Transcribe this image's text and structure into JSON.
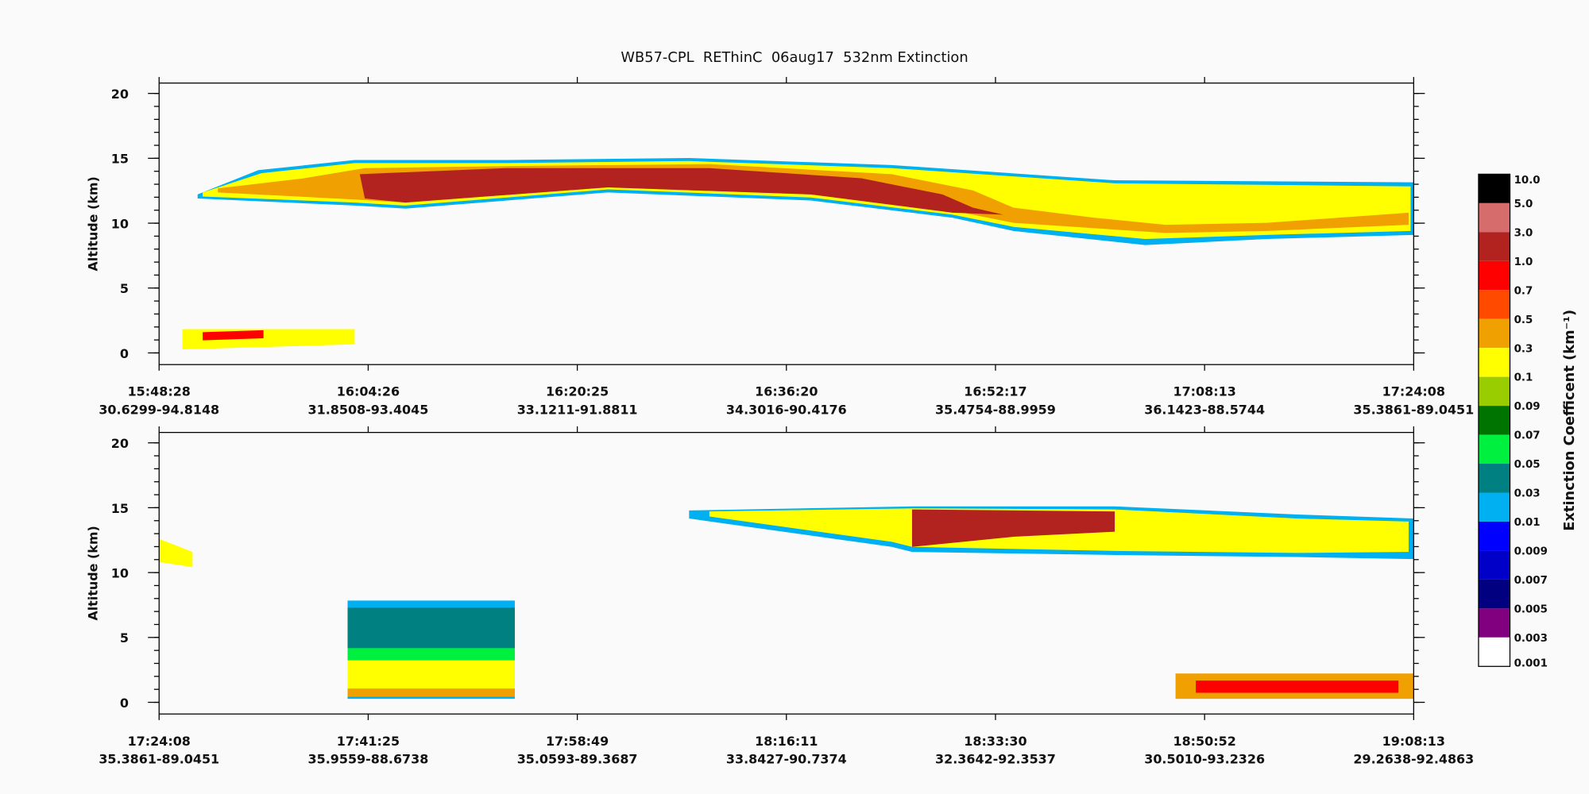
{
  "title": "WB57-CPL  REThinC  06aug17  532nm Extinction",
  "panels": [
    {
      "y_label": "Altitude (km)",
      "ylim": [
        -0.9,
        20.8
      ],
      "yticks": [
        0,
        5,
        10,
        15,
        20
      ],
      "x_ticks": [
        {
          "time": "15:48:28",
          "location": "30.6299-94.8148"
        },
        {
          "time": "16:04:26",
          "location": "31.8508-93.4045"
        },
        {
          "time": "16:20:25",
          "location": "33.1211-91.8811"
        },
        {
          "time": "16:36:20",
          "location": "34.3016-90.4176"
        },
        {
          "time": "16:52:17",
          "location": "35.4754-88.9959"
        },
        {
          "time": "17:08:13",
          "location": "36.1423-88.5744"
        },
        {
          "time": "17:24:08",
          "location": "35.3861-89.0451"
        }
      ]
    },
    {
      "y_label": "Altitude (km)",
      "ylim": [
        -0.9,
        20.8
      ],
      "yticks": [
        0,
        5,
        10,
        15,
        20
      ],
      "x_ticks": [
        {
          "time": "17:24:08",
          "location": "35.3861-89.0451"
        },
        {
          "time": "17:41:25",
          "location": "35.9559-88.6738"
        },
        {
          "time": "17:58:49",
          "location": "35.0593-89.3687"
        },
        {
          "time": "18:16:11",
          "location": "33.8427-90.7374"
        },
        {
          "time": "18:33:30",
          "location": "32.3642-92.3537"
        },
        {
          "time": "18:50:52",
          "location": "30.5010-93.2326"
        },
        {
          "time": "19:08:13",
          "location": "29.2638-92.4863"
        }
      ]
    }
  ],
  "colorbar": {
    "label": "Extinction Coefficent (km⁻¹)",
    "levels": [
      "10.0",
      "5.0",
      "3.0",
      "1.0",
      "0.7",
      "0.5",
      "0.3",
      "0.1",
      "0.09",
      "0.07",
      "0.05",
      "0.03",
      "0.01",
      "0.009",
      "0.007",
      "0.005",
      "0.003",
      "0.001"
    ],
    "colors": [
      "#000000",
      "#d76c6c",
      "#b2221f",
      "#ff0000",
      "#ff4a00",
      "#f0a000",
      "#ffff00",
      "#9acd00",
      "#007400",
      "#00f040",
      "#008080",
      "#00b0f0",
      "#0000ff",
      "#0000c8",
      "#000080",
      "#800080",
      "#ffffff"
    ]
  }
}
